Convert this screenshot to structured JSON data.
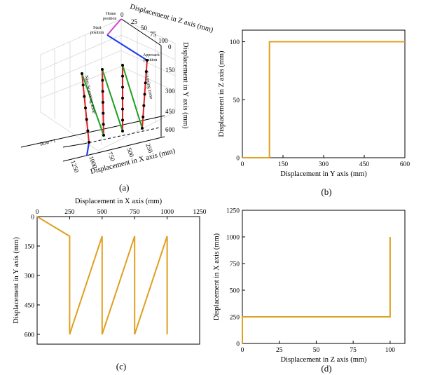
{
  "colors": {
    "series": "#e0a020",
    "scanning": "#e02020",
    "non_scanning": "#20a020",
    "approach": "#1e3cf0",
    "home_move": "#d040d0",
    "point": "#000000"
  },
  "panel_a": {
    "caption": "(a)",
    "z_axis_label": "Displacement in Z axis (mm)",
    "y_axis_label": "Displacement in Y axis (mm)",
    "x_axis_label": "Displacement in X axis (mm)",
    "z_ticks": [
      "0",
      "25",
      "50",
      "75",
      "100"
    ],
    "y_ticks": [
      "0",
      "150",
      "300",
      "450",
      "600"
    ],
    "x_ticks": [
      "250",
      "500",
      "750",
      "1000",
      "1250"
    ],
    "annotations": {
      "home": [
        "Home",
        "position"
      ],
      "start": [
        "Start",
        "position"
      ],
      "approach": [
        "Approach",
        "position"
      ],
      "scanning": "Scanning zone",
      "non_scanning": "Non-Scanning zone",
      "row": "Row - 1"
    }
  },
  "chart_data": [
    {
      "panel": "(b)",
      "type": "line",
      "xlabel": "Displacement in Y axis (mm)",
      "ylabel": "Displacement in Z axis (mm)",
      "xlim": [
        0,
        600
      ],
      "ylim": [
        0,
        110
      ],
      "xticks": [
        0,
        150,
        300,
        450,
        600
      ],
      "yticks": [
        0,
        50,
        100
      ],
      "x": [
        0,
        100,
        100,
        600
      ],
      "y": [
        0,
        0,
        100,
        100
      ]
    },
    {
      "panel": "(c)",
      "type": "line",
      "xlabel": "Displacement in X axis (mm)",
      "ylabel": "Displacement in Y axis (mm)",
      "xlim": [
        0,
        1250
      ],
      "ylim": [
        0,
        650
      ],
      "y_inverted": true,
      "x_axis_position": "top",
      "xticks": [
        0,
        250,
        500,
        750,
        1000,
        1250
      ],
      "yticks": [
        0,
        150,
        300,
        450,
        600
      ],
      "x": [
        0,
        250,
        250,
        500,
        500,
        750,
        750,
        1000,
        1000
      ],
      "y": [
        0,
        100,
        600,
        100,
        600,
        100,
        600,
        100,
        600
      ]
    },
    {
      "panel": "(d)",
      "type": "line",
      "xlabel": "Displacement in Z axis (mm)",
      "ylabel": "Displacement in X axis (mm)",
      "xlim": [
        0,
        110
      ],
      "ylim": [
        0,
        1250
      ],
      "xticks": [
        0,
        25,
        50,
        75,
        100
      ],
      "yticks": [
        0,
        250,
        500,
        750,
        1000,
        1250
      ],
      "x": [
        0,
        0,
        100,
        100
      ],
      "y": [
        0,
        250,
        250,
        1000
      ]
    }
  ]
}
